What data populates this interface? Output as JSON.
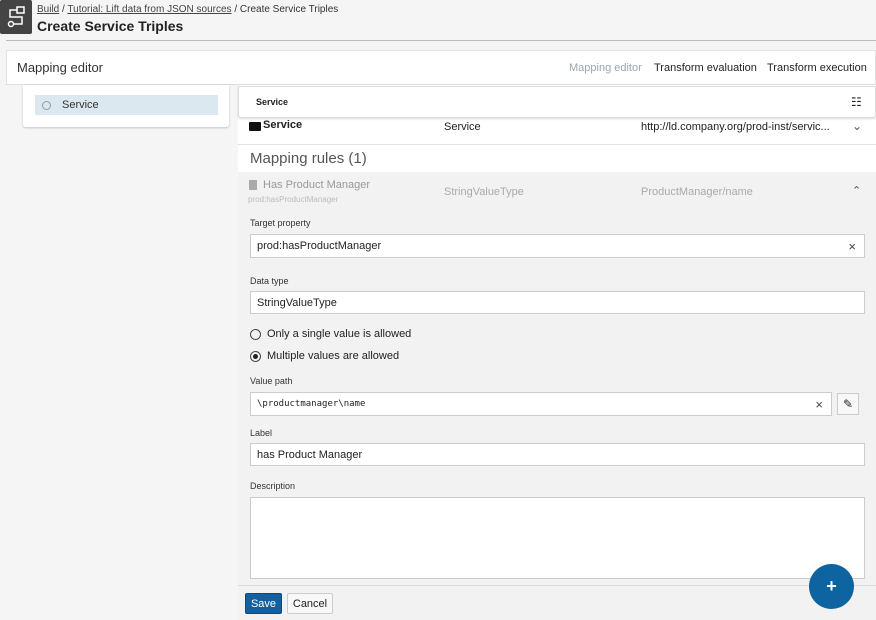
{
  "header": {
    "breadcrumb": [
      "Build",
      "Tutorial: Lift data from JSON sources",
      "Create Service Triples"
    ],
    "title": "Create Service Triples"
  },
  "card": {
    "title": "Mapping editor",
    "tabs": [
      {
        "label": "Mapping editor",
        "active": true
      },
      {
        "label": "Transform evaluation"
      },
      {
        "label": "Transform execution"
      }
    ]
  },
  "tree": {
    "items": [
      {
        "label": "Service"
      }
    ]
  },
  "object": {
    "header": "Service",
    "row": {
      "name": "Service",
      "type": "Service",
      "uri": "http://ld.company.org/prod-inst/servic..."
    }
  },
  "rules": {
    "title": "Mapping rules (1)",
    "rule": {
      "name": "Has Product Manager",
      "property": "prod:hasProductManager",
      "type": "StringValueType",
      "path": "ProductManager/name"
    }
  },
  "form": {
    "target_property_label": "Target property",
    "target_property": "prod:hasProductManager",
    "data_type_label": "Data type",
    "data_type": "StringValueType",
    "radio_single": "Only a single value is allowed",
    "radio_multiple": "Multiple values are allowed",
    "selected": "multiple",
    "value_path_label": "Value path",
    "value_path": "\\productmanager\\name",
    "label_label": "Label",
    "label": "has Product Manager",
    "description_label": "Description",
    "description": "",
    "save": "Save",
    "cancel": "Cancel",
    "fab": "+"
  },
  "colors": {
    "primary": "#155f9c",
    "selected": "#dce8f0"
  }
}
